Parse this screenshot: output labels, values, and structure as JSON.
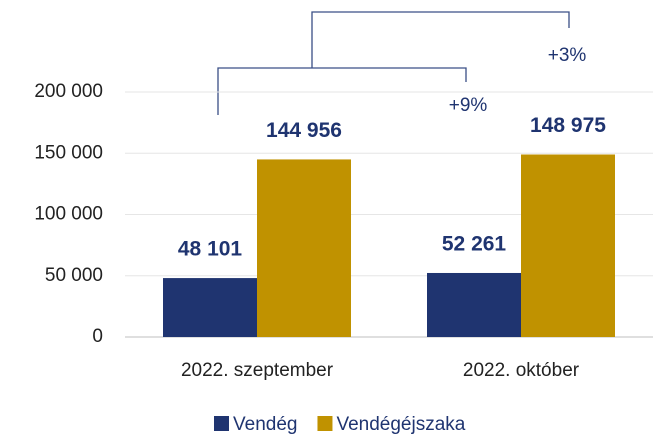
{
  "chart_data": {
    "type": "bar",
    "categories": [
      "2022. szeptember",
      "2022. október"
    ],
    "series": [
      {
        "name": "Vendég",
        "color": "#1f3470",
        "values": [
          48101,
          52261
        ],
        "value_labels": [
          "48 101",
          "52 261"
        ]
      },
      {
        "name": "Vendégéjszaka",
        "color": "#c09200",
        "values": [
          144956,
          148975
        ],
        "value_labels": [
          "144 956",
          "148 975"
        ]
      }
    ],
    "ylim": [
      0,
      200000
    ],
    "yticks": [
      0,
      {
        "value": 50000,
        "label": "50 000"
      },
      {
        "value": 100000,
        "label": "100 000"
      },
      {
        "value": 150000,
        "label": "150 000"
      },
      {
        "value": 200000,
        "label": "200 000"
      }
    ],
    "grid": true,
    "legend": "bottom",
    "annotations": [
      "+9%",
      "+3%"
    ]
  }
}
